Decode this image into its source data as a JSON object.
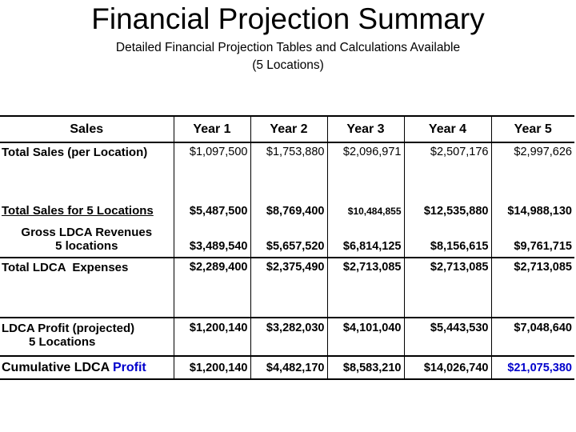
{
  "title": "Financial Projection Summary",
  "subtitle": "Detailed Financial Projection Tables and Calculations Available",
  "subtitle2": "(5 Locations)",
  "table": {
    "headers": [
      "Sales",
      "Year 1",
      "Year 2",
      "Year 3",
      "Year 4",
      "Year 5"
    ],
    "rows": {
      "total_sales_per_location": {
        "label": "Total Sales (per Location)",
        "values": [
          "$1,097,500",
          "$1,753,880",
          "$2,096,971",
          "$2,507,176",
          "$2,997,626"
        ]
      },
      "total_sales_5_locations": {
        "label": "Total Sales for 5 Locations",
        "values": [
          "$5,487,500",
          "$8,769,400",
          "$10,484,855",
          "$12,535,880",
          "$14,988,130"
        ]
      },
      "gross_ldca_revenues": {
        "label_line1": "Gross LDCA Revenues",
        "label_line2": "5 locations",
        "values": [
          "$3,489,540",
          "$5,657,520",
          "$6,814,125",
          "$8,156,615",
          "$9,761,715"
        ]
      },
      "total_ldca_expenses": {
        "label": "Total LDCA  Expenses",
        "values": [
          "$2,289,400",
          "$2,375,490",
          "$2,713,085",
          "$2,713,085",
          "$2,713,085"
        ]
      },
      "ldca_profit": {
        "label_line1": "LDCA Profit (projected)",
        "label_line2": "5 Locations",
        "values": [
          "$1,200,140",
          "$3,282,030",
          "$4,101,040",
          "$5,443,530",
          "$7,048,640"
        ]
      },
      "cumulative_ldca_profit": {
        "label_part1": "Cumulative LDCA ",
        "label_part2": "Profit",
        "values": [
          "$1,200,140",
          "$4,482,170",
          "$8,583,210",
          "$14,026,740",
          "$21,075,380"
        ]
      }
    }
  },
  "colors": {
    "text": "#000000",
    "highlight": "#0000cc",
    "background": "#ffffff"
  }
}
